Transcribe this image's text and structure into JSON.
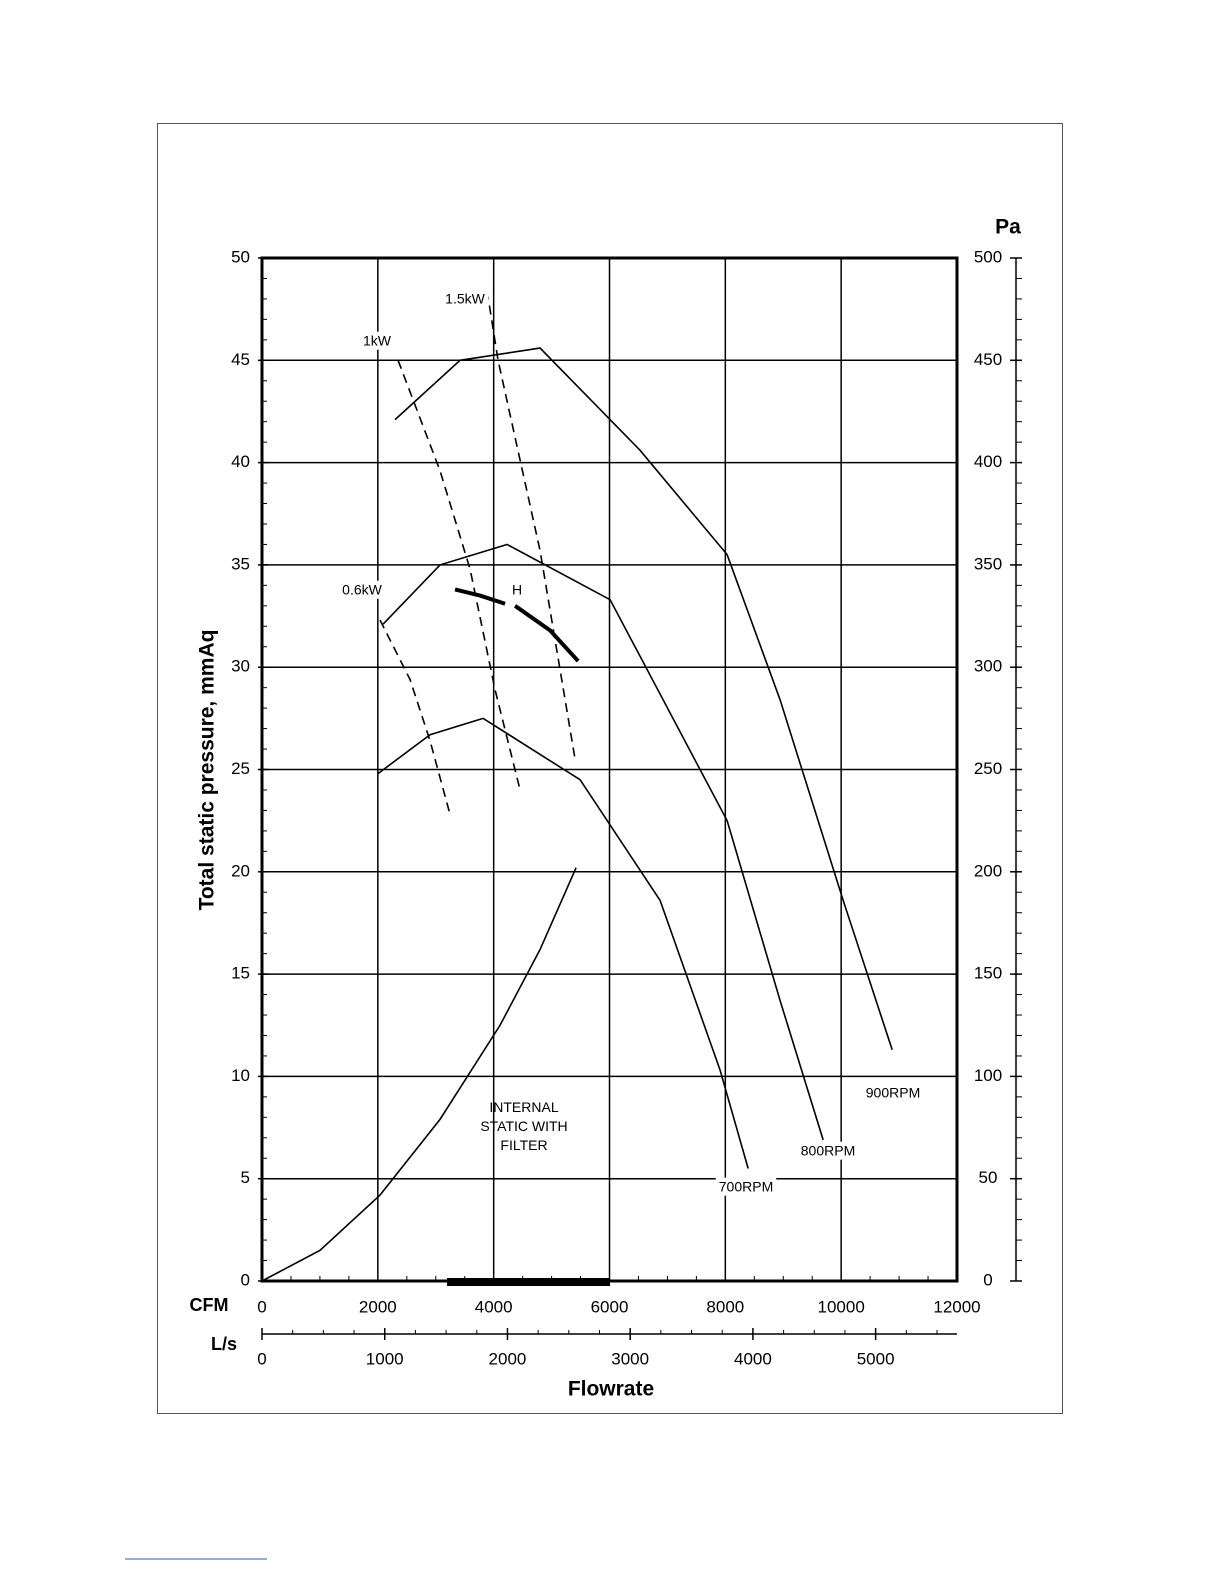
{
  "chart_data": {
    "type": "line",
    "y_label": "Total static pressure, mmAq",
    "y2_label": "Pa",
    "x_label": "Flowrate",
    "x_unit": "CFM",
    "x2_unit": "L/s",
    "xlim": [
      0,
      12000
    ],
    "xticks": [
      0,
      2000,
      4000,
      6000,
      8000,
      10000,
      12000
    ],
    "x2lim": [
      0,
      5663
    ],
    "x2ticks": [
      0,
      1000,
      2000,
      3000,
      4000,
      5000
    ],
    "ylim": [
      0,
      50
    ],
    "yticks": [
      0,
      5,
      10,
      15,
      20,
      25,
      30,
      35,
      40,
      45,
      50
    ],
    "y2lim": [
      0,
      500
    ],
    "y2ticks": [
      0,
      50,
      100,
      150,
      200,
      250,
      300,
      350,
      400,
      450,
      500
    ],
    "grid": true,
    "highlight_range": [
      3195,
      6010
    ],
    "series": [
      {
        "name": "900RPM",
        "color": "#000000",
        "style": "solid",
        "x": [
          2297,
          3420,
          4801,
          6528,
          8031,
          8946,
          10035,
          10881
        ],
        "values": [
          42.1,
          45.0,
          45.6,
          40.6,
          35.5,
          28.4,
          18.6,
          11.3
        ]
      },
      {
        "name": "800RPM",
        "color": "#000000",
        "style": "solid",
        "x": [
          2090,
          3074,
          4231,
          6010,
          8031,
          8946,
          9689
        ],
        "values": [
          32.1,
          35.0,
          36.0,
          33.3,
          22.5,
          13.7,
          6.9
        ]
      },
      {
        "name": "700RPM",
        "color": "#000000",
        "style": "solid",
        "x": [
          2003,
          2902,
          3817,
          5492,
          6874,
          7910,
          8394
        ],
        "values": [
          24.8,
          26.7,
          27.5,
          24.5,
          18.6,
          10.3,
          5.5
        ]
      },
      {
        "name": "INTERNAL STATIC WITH FILTER",
        "color": "#000000",
        "style": "solid",
        "x": [
          0,
          1002,
          2038,
          3074,
          4110,
          4801,
          5423
        ],
        "values": [
          0,
          1.5,
          4.2,
          7.9,
          12.5,
          16.2,
          20.2
        ]
      },
      {
        "name": "H",
        "color": "#000000",
        "style": "thick",
        "x": [
          3333,
          3765,
          4197,
          null,
          4370,
          4974,
          5458
        ],
        "values": [
          33.8,
          33.5,
          33.1,
          null,
          33.0,
          31.8,
          30.3
        ]
      },
      {
        "name": "1.5kW",
        "color": "#000000",
        "style": "dashed",
        "x": [
          3886,
          4076,
          4801,
          5406
        ],
        "values": [
          48.4,
          45.0,
          35.7,
          25.5
        ]
      },
      {
        "name": "1kW",
        "color": "#000000",
        "style": "dashed",
        "x": [
          2349,
          3074,
          3592,
          4024,
          4456
        ],
        "values": [
          45.0,
          39.6,
          34.8,
          28.9,
          24.0
        ]
      },
      {
        "name": "0.6kW",
        "color": "#000000",
        "style": "dashed",
        "x": [
          2038,
          2556,
          2902,
          3247
        ],
        "values": [
          32.3,
          29.4,
          26.4,
          22.8
        ]
      }
    ]
  }
}
